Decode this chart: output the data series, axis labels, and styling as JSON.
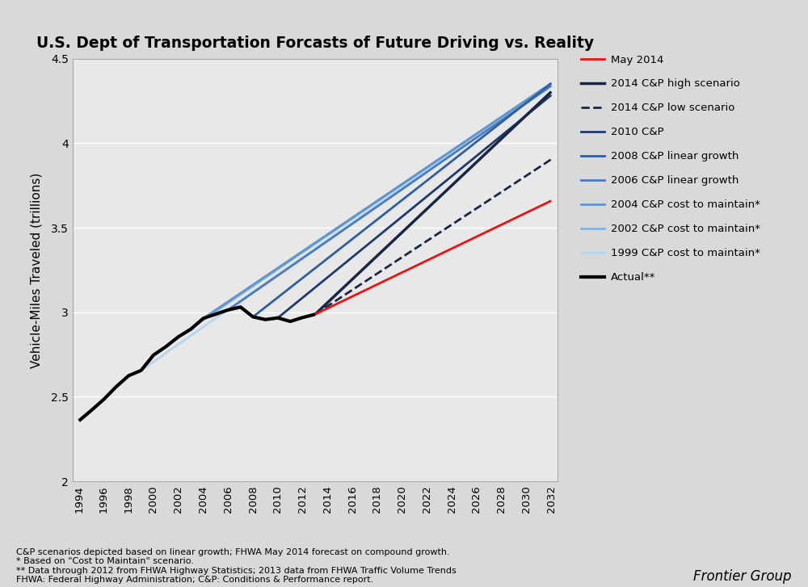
{
  "title": "U.S. Dept of Transportation Forcasts of Future Driving vs. Reality",
  "ylabel": "Vehicle-Miles Traveled (trillions)",
  "ylim": [
    2.0,
    4.5
  ],
  "xlim": [
    1993.5,
    2032.5
  ],
  "yticks": [
    2.0,
    2.5,
    3.0,
    3.5,
    4.0,
    4.5
  ],
  "xticks": [
    1994,
    1996,
    1998,
    2000,
    2002,
    2004,
    2006,
    2008,
    2010,
    2012,
    2014,
    2016,
    2018,
    2020,
    2022,
    2024,
    2026,
    2028,
    2030,
    2032
  ],
  "background_color": "#d9d9d9",
  "plot_bg_color": "#e8e8e8",
  "footnote_lines": [
    "C&P scenarios depicted based on linear growth; FHWA May 2014 forecast on compound growth.",
    "* Based on \"Cost to Maintain\" scenario.",
    "** Data through 2012 from FHWA Highway Statistics; 2013 data from FHWA Traffic Volume Trends",
    "FHWA: Federal Highway Administration; C&P: Conditions & Performance report."
  ],
  "frontier_group_text": "Frontier Group",
  "actual_data": {
    "years": [
      1994,
      1995,
      1996,
      1997,
      1998,
      1999,
      2000,
      2001,
      2002,
      2003,
      2004,
      2005,
      2006,
      2007,
      2008,
      2009,
      2010,
      2011,
      2012,
      2013
    ],
    "vmt": [
      2.358,
      2.42,
      2.485,
      2.56,
      2.625,
      2.656,
      2.747,
      2.797,
      2.855,
      2.9,
      2.964,
      2.989,
      3.014,
      3.031,
      2.973,
      2.957,
      2.967,
      2.946,
      2.969,
      2.988
    ]
  },
  "may2014": {
    "years": [
      2013,
      2032
    ],
    "vmt": [
      2.988,
      3.66
    ],
    "color": "#ee1111",
    "lw": 2.0,
    "linestyle": "solid",
    "label": "May 2014"
  },
  "cp2014_high": {
    "years": [
      2013,
      2032
    ],
    "vmt": [
      2.988,
      4.305
    ],
    "color": "#1a2744",
    "lw": 2.5,
    "linestyle": "solid",
    "label": "2014 C&P high scenario"
  },
  "cp2014_low": {
    "years": [
      2013,
      2032
    ],
    "vmt": [
      2.988,
      3.905
    ],
    "color": "#1a2744",
    "lw": 2.0,
    "linestyle": "dashed",
    "label": "2014 C&P low scenario"
  },
  "cp2010": {
    "years": [
      2010,
      2032
    ],
    "vmt": [
      2.967,
      4.285
    ],
    "color": "#1e3a6e",
    "lw": 2.0,
    "linestyle": "solid",
    "label": "2010 C&P"
  },
  "cp2008": {
    "years": [
      2008,
      2032
    ],
    "vmt": [
      2.973,
      4.355
    ],
    "color": "#2e5fa0",
    "lw": 2.0,
    "linestyle": "solid",
    "label": "2008 C&P linear growth"
  },
  "cp2006": {
    "years": [
      2006,
      2032
    ],
    "vmt": [
      3.014,
      4.34
    ],
    "color": "#4a7bbf",
    "lw": 2.0,
    "linestyle": "solid",
    "label": "2006 C&P linear growth"
  },
  "cp2004": {
    "years": [
      2004,
      2032
    ],
    "vmt": [
      2.964,
      4.355
    ],
    "color": "#6096cc",
    "lw": 2.0,
    "linestyle": "solid",
    "label": "2004 C&P cost to maintain*"
  },
  "cp2002": {
    "years": [
      2002,
      2032
    ],
    "vmt": [
      2.855,
      4.355
    ],
    "color": "#82b5df",
    "lw": 2.0,
    "linestyle": "solid",
    "label": "2002 C&P cost to maintain*"
  },
  "cp1999": {
    "years": [
      1999,
      2032
    ],
    "vmt": [
      2.656,
      4.355
    ],
    "color": "#b8d5f0",
    "lw": 2.0,
    "linestyle": "solid",
    "label": "1999 C&P cost to maintain*"
  }
}
